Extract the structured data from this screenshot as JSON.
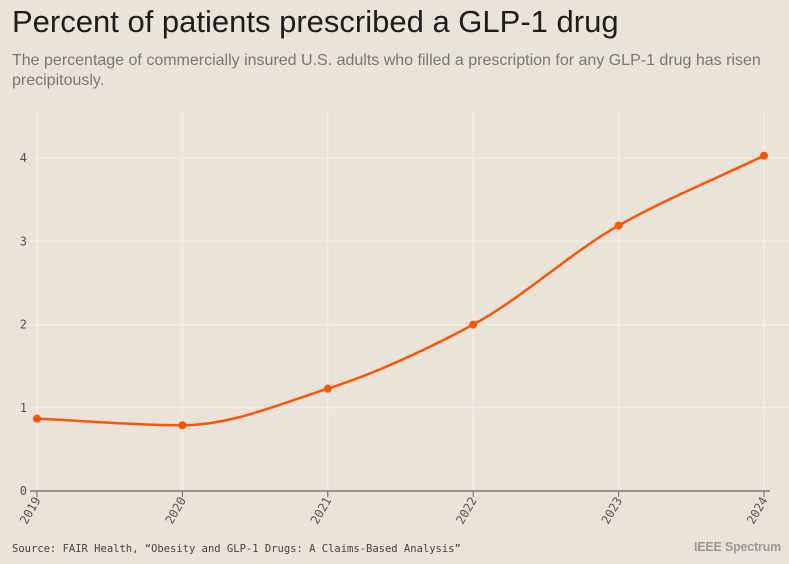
{
  "header": {
    "title": "Percent of patients prescribed a GLP-1 drug",
    "subtitle": "The percentage of commercially insured U.S. adults who filled a prescription for any GLP-1 drug has risen precipitously."
  },
  "footer": {
    "source": "Source: FAIR Health, “Obesity and GLP-1 Drugs: A Claims-Based Analysis”",
    "brand": "IEEE Spectrum"
  },
  "colors": {
    "background": "#e9e3d9",
    "line": "#ff5500",
    "grid": "#f3efe8",
    "axis": "#666666"
  },
  "chart_data": {
    "type": "line",
    "title": "Percent of patients prescribed a GLP-1 drug",
    "xlabel": "",
    "ylabel": "",
    "x": [
      "2019",
      "2020",
      "2021",
      "2022",
      "2023",
      "2024"
    ],
    "series": [
      {
        "name": "Percent of patients",
        "values": [
          0.87,
          0.79,
          1.23,
          2.0,
          3.19,
          4.03
        ]
      }
    ],
    "yticks": [
      0,
      1,
      2,
      3,
      4
    ],
    "ylim": [
      0,
      4.5
    ],
    "grid": true,
    "legend": "none"
  }
}
